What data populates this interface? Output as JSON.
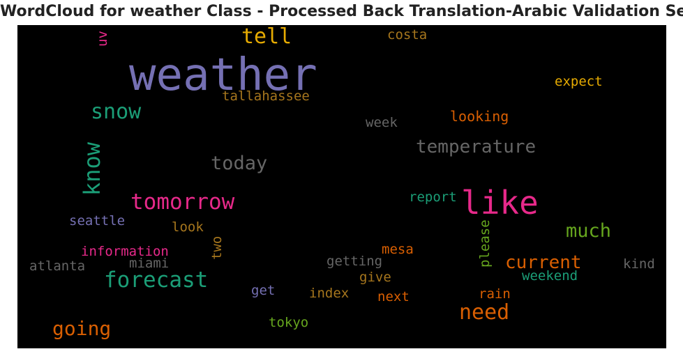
{
  "title": "WordCloud for weather Class - Processed Back Translation-Arabic Validation Set",
  "colors": {
    "background": "#000000",
    "purple": "#7570b3",
    "teal": "#1b9e77",
    "orange": "#d95f02",
    "magenta": "#e7298a",
    "green": "#66a61e",
    "gold": "#e6ab02",
    "brown": "#a6761d",
    "gray": "#666666"
  },
  "chart_data": {
    "type": "wordcloud",
    "words": [
      {
        "text": "weather",
        "color": "purple"
      },
      {
        "text": "like",
        "color": "magenta"
      },
      {
        "text": "tell",
        "color": "gold"
      },
      {
        "text": "uv",
        "color": "magenta"
      },
      {
        "text": "costa",
        "color": "brown"
      },
      {
        "text": "expect",
        "color": "gold"
      },
      {
        "text": "tallahassee",
        "color": "brown"
      },
      {
        "text": "snow",
        "color": "teal"
      },
      {
        "text": "looking",
        "color": "orange"
      },
      {
        "text": "week",
        "color": "gray"
      },
      {
        "text": "temperature",
        "color": "gray"
      },
      {
        "text": "know",
        "color": "teal"
      },
      {
        "text": "today",
        "color": "gray"
      },
      {
        "text": "tomorrow",
        "color": "magenta"
      },
      {
        "text": "report",
        "color": "teal"
      },
      {
        "text": "seattle",
        "color": "purple"
      },
      {
        "text": "look",
        "color": "brown"
      },
      {
        "text": "much",
        "color": "green"
      },
      {
        "text": "please",
        "color": "green"
      },
      {
        "text": "two",
        "color": "brown"
      },
      {
        "text": "information",
        "color": "magenta"
      },
      {
        "text": "mesa",
        "color": "orange"
      },
      {
        "text": "current",
        "color": "orange"
      },
      {
        "text": "atlanta",
        "color": "gray"
      },
      {
        "text": "miami",
        "color": "gray"
      },
      {
        "text": "getting",
        "color": "gray"
      },
      {
        "text": "kind",
        "color": "gray"
      },
      {
        "text": "forecast",
        "color": "teal"
      },
      {
        "text": "give",
        "color": "brown"
      },
      {
        "text": "weekend",
        "color": "teal"
      },
      {
        "text": "get",
        "color": "purple"
      },
      {
        "text": "index",
        "color": "brown"
      },
      {
        "text": "next",
        "color": "orange"
      },
      {
        "text": "rain",
        "color": "orange"
      },
      {
        "text": "need",
        "color": "orange"
      },
      {
        "text": "going",
        "color": "orange"
      },
      {
        "text": "tokyo",
        "color": "green"
      }
    ]
  }
}
